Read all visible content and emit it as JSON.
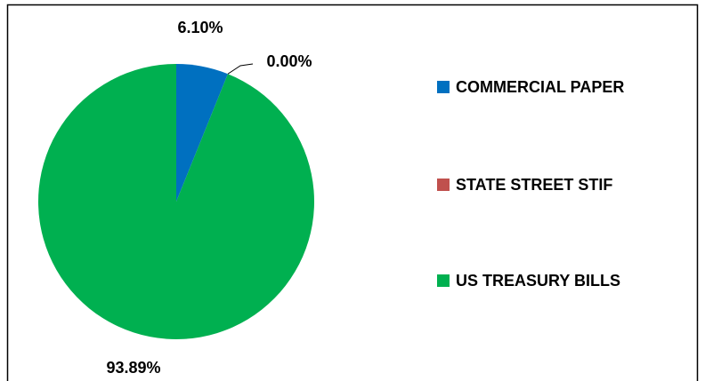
{
  "chart_data": {
    "type": "pie",
    "categories": [
      "COMMERCIAL PAPER",
      "STATE STREET STIF",
      "US TREASURY BILLS"
    ],
    "values": [
      6.1,
      0,
      93.89
    ],
    "value_labels": [
      "6.10%",
      "0.00%",
      "93.89%"
    ],
    "colors": [
      "#0070c0",
      "#c0504d",
      "#00b050"
    ],
    "legend": "right"
  }
}
